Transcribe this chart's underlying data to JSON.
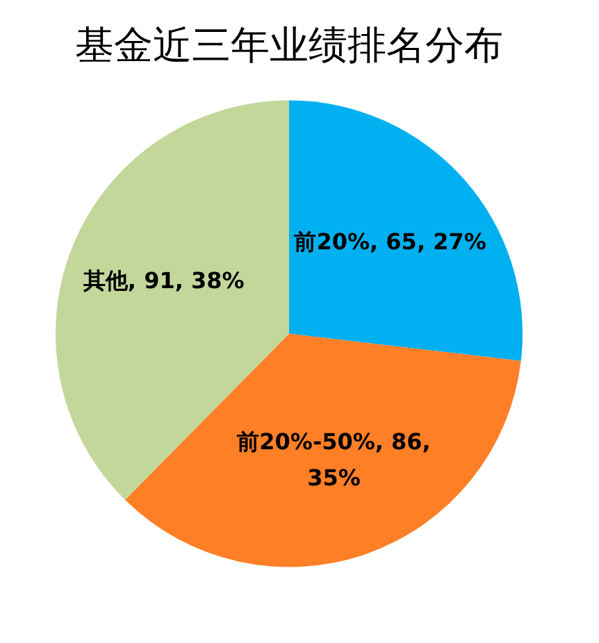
{
  "chart_data": {
    "type": "pie",
    "title": "基金近三年业绩排名分布",
    "categories": [
      "前20%",
      "前20%-50%",
      "其他"
    ],
    "values": [
      65,
      86,
      91
    ],
    "value_labels": [
      "65, 27%",
      "86, 35%",
      "91, 38%"
    ],
    "colors": [
      "#00b0f0",
      "#ff7f27",
      "#c4d79b"
    ],
    "legend": false
  }
}
